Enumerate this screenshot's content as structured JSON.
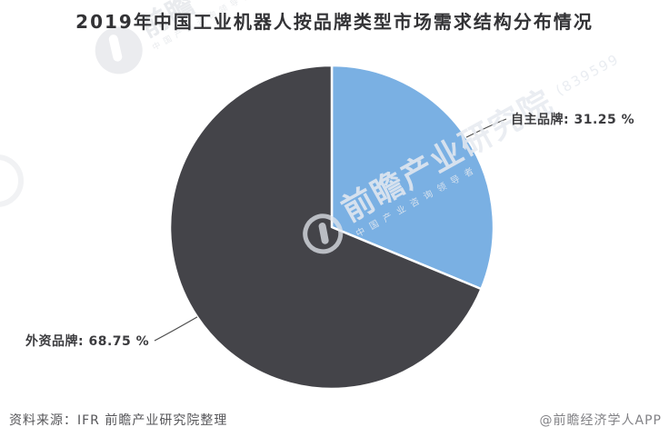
{
  "title": "2019年中国工业机器人按品牌类型市场需求结构分布情况",
  "chart_data": {
    "type": "pie",
    "title": "2019年中国工业机器人按品牌类型市场需求结构分布情况",
    "slices": [
      {
        "name": "自主品牌",
        "value": 31.25,
        "percent_label": "自主品牌: 31.25 %",
        "color": "#7ab0e3"
      },
      {
        "name": "外资品牌",
        "value": 68.75,
        "percent_label": "外资品牌: 68.75 %",
        "color": "#444449"
      }
    ],
    "start_angle": "top",
    "direction": "clockwise",
    "label_position": "outside",
    "slice_border_color": "#ffffff",
    "leader_line_color": "#4d4d4d",
    "legend": "none"
  },
  "footer": {
    "source": "资料来源：IFR 前瞻产业研究院整理",
    "credit": "@前瞻经济学人APP"
  },
  "watermark": {
    "brand": "前瞻产业研究院",
    "tagline": "中国产业咨询领导者",
    "serial": "(839599",
    "corner_brand": "前瞻",
    "corner_tagline": "中国产业咨询领导者"
  }
}
